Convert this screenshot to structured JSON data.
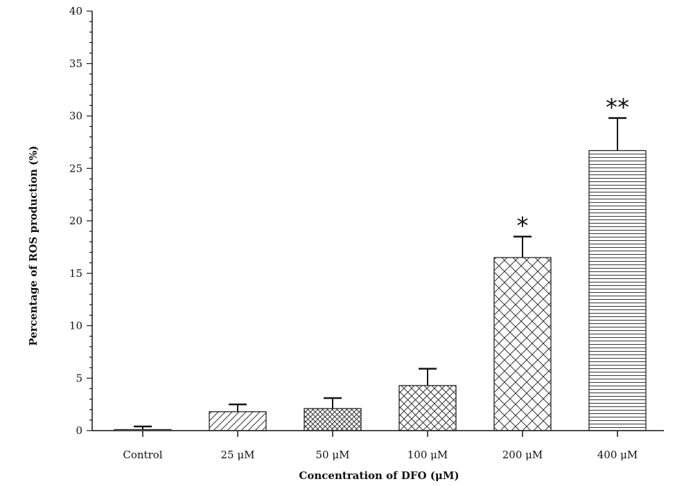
{
  "chart_data": {
    "type": "bar",
    "title": "",
    "xlabel": "Concentration of DFO (μM)",
    "ylabel": "Percentage of ROS production (%)",
    "ylim": [
      0,
      40
    ],
    "yticks": [
      0,
      5,
      10,
      15,
      20,
      25,
      30,
      35,
      40
    ],
    "categories": [
      "Control",
      "25 μM",
      "50 μM",
      "100 μM",
      "200 μM",
      "400 μM"
    ],
    "values": [
      0.1,
      1.8,
      2.1,
      4.3,
      16.5,
      26.7
    ],
    "error_upper": [
      0.4,
      2.5,
      3.1,
      5.9,
      18.5,
      29.8
    ],
    "annotations": [
      "",
      "",
      "",
      "",
      "*",
      "**"
    ],
    "patterns": [
      "none",
      "diag-right",
      "diag-cross-dense",
      "diag-cross",
      "diag-cross-wide",
      "horizontal"
    ],
    "grid": false,
    "legend": "none"
  }
}
